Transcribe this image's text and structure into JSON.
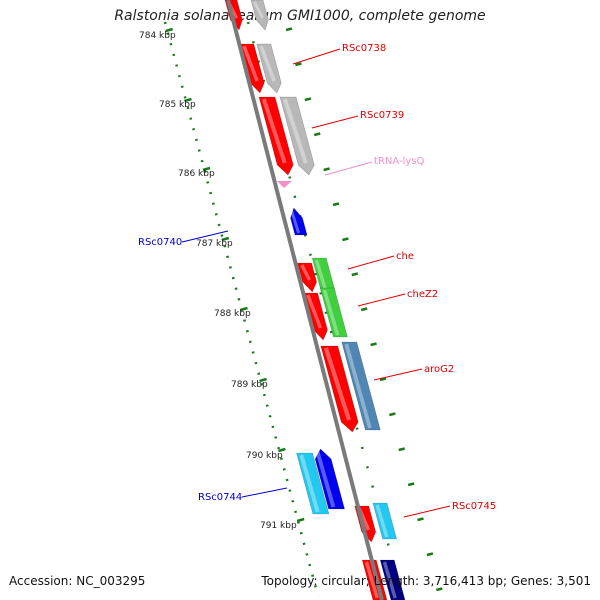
{
  "title": "Ralstonia solanacearum GMI1000, complete genome",
  "accession": "Accession: NC_003295",
  "summary": "Topology: circular; Length: 3,716,413 bp; Genes: 3,501",
  "colors": {
    "backbone": "#7a7a7a",
    "ticks": "#1a7a1a",
    "gene_red": "#ff0000",
    "gene_gray": "#b8b8b8",
    "gene_green": "#3fcf3f",
    "gene_steel": "#4f86b4",
    "gene_blue": "#0000ee",
    "gene_cyan": "#22c8f0",
    "gene_navy": "#000080",
    "trna_pink": "#f090c8"
  },
  "scale_labels": [
    "784 kbp",
    "785 kbp",
    "786 kbp",
    "787 kbp",
    "788 kbp",
    "789 kbp",
    "790 kbp",
    "791 kbp"
  ],
  "gene_labels": [
    {
      "text": "RSc0738",
      "color": "#dd0000"
    },
    {
      "text": "RSc0739",
      "color": "#dd0000"
    },
    {
      "text": "tRNA-lysQ",
      "color": "#f090c8"
    },
    {
      "text": "che",
      "color": "#dd0000"
    },
    {
      "text": "cheZ2",
      "color": "#dd0000"
    },
    {
      "text": "aroG2",
      "color": "#dd0000"
    },
    {
      "text": "RSc0745",
      "color": "#dd0000"
    },
    {
      "text": "RSc0740",
      "color": "#0000cc"
    },
    {
      "text": "RSc0744",
      "color": "#0000cc"
    }
  ]
}
